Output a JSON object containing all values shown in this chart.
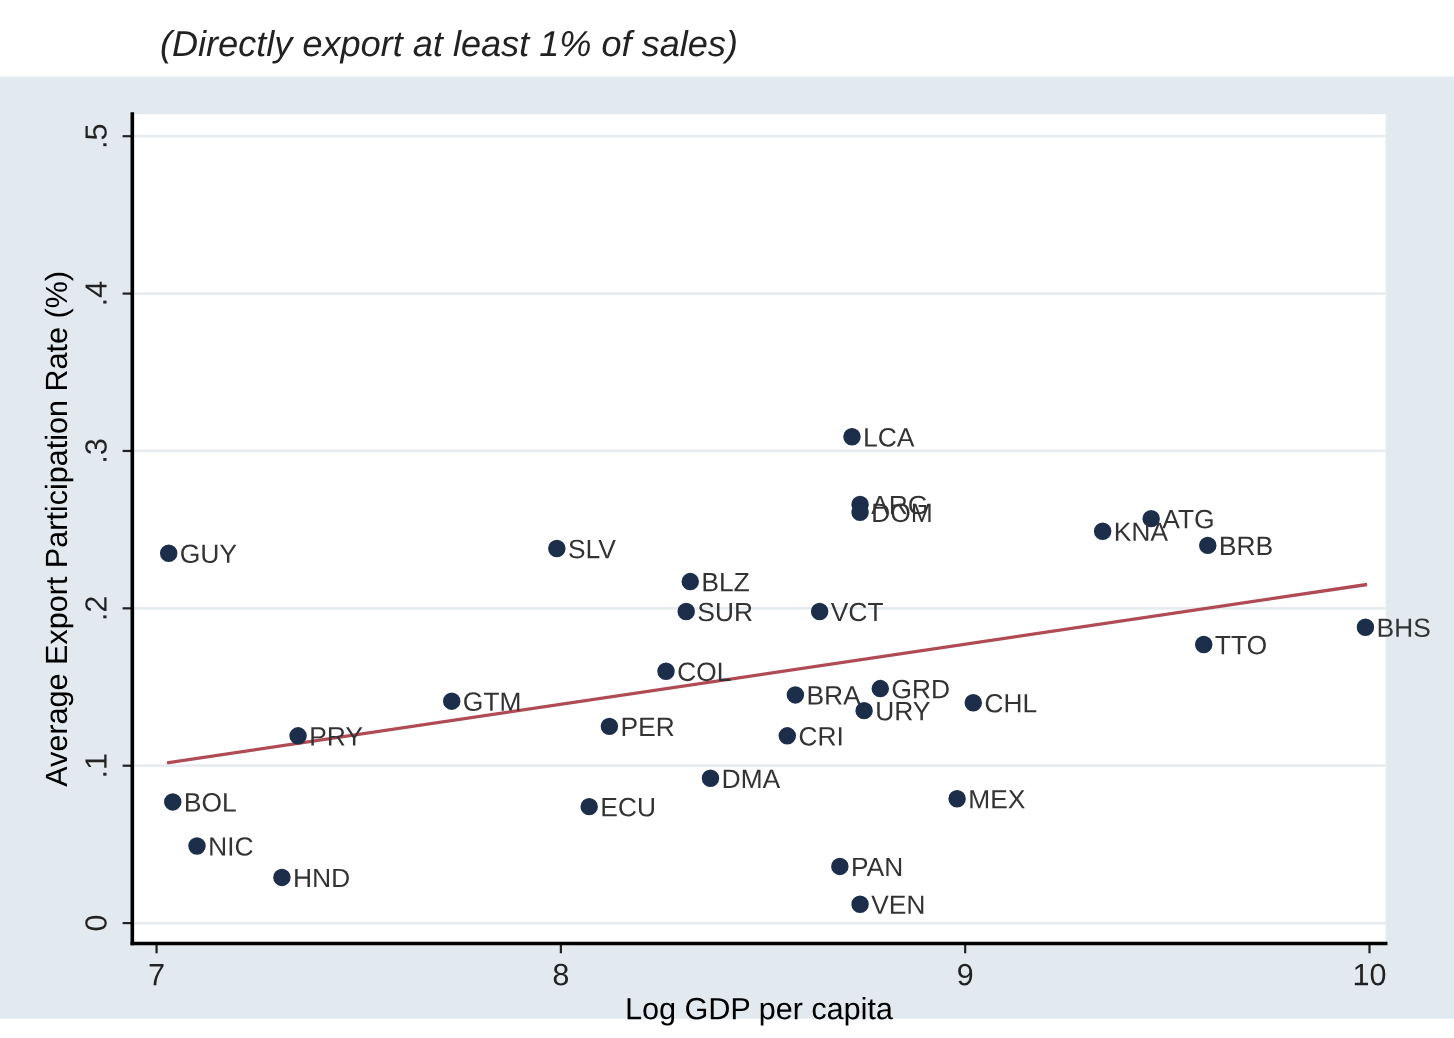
{
  "chart_data": {
    "type": "scatter",
    "title": "(Directly export at least 1% of sales)",
    "xlabel": "Log GDP per capita",
    "ylabel": "Average Export Participation Rate (%)",
    "xlim": [
      6.94,
      10.04
    ],
    "xticks": [
      7,
      8,
      9,
      10
    ],
    "ylim": [
      -0.013,
      0.514
    ],
    "yticks": [
      {
        "value": 0,
        "label": "0"
      },
      {
        "value": 0.1,
        "label": ".1"
      },
      {
        "value": 0.2,
        "label": ".2"
      },
      {
        "value": 0.3,
        "label": ".3"
      },
      {
        "value": 0.4,
        "label": ".4"
      },
      {
        "value": 0.5,
        "label": ".5"
      }
    ],
    "grid": "y",
    "legend": false,
    "series": [
      {
        "marker": "circle",
        "color": "#1c2e4a",
        "x": [
          7.03,
          7.99,
          8.32,
          8.31,
          8.72,
          8.74,
          8.74,
          9.46,
          9.34,
          9.6,
          8.64,
          8.26,
          7.73,
          7.35,
          8.12,
          8.58,
          8.79,
          8.75,
          8.56,
          9.02,
          9.59,
          9.99,
          8.37,
          8.07,
          8.98,
          7.04,
          7.1,
          7.31,
          8.69,
          8.74
        ],
        "values": [
          0.235,
          0.238,
          0.217,
          0.198,
          0.309,
          0.266,
          0.261,
          0.257,
          0.249,
          0.24,
          0.198,
          0.16,
          0.141,
          0.119,
          0.125,
          0.145,
          0.149,
          0.135,
          0.119,
          0.14,
          0.177,
          0.188,
          0.092,
          0.074,
          0.079,
          0.077,
          0.049,
          0.029,
          0.036,
          0.012
        ]
      },
      {
        "type": "line",
        "color": "#b04a55",
        "x": [
          7.03,
          9.99
        ],
        "values": [
          0.102,
          0.215
        ]
      }
    ],
    "annotations": [
      {
        "text": "GUY",
        "x": 7.03,
        "y": 0.235
      },
      {
        "text": "SLV",
        "x": 7.99,
        "y": 0.238
      },
      {
        "text": "BLZ",
        "x": 8.32,
        "y": 0.217
      },
      {
        "text": "SUR",
        "x": 8.31,
        "y": 0.198
      },
      {
        "text": "LCA",
        "x": 8.72,
        "y": 0.309
      },
      {
        "text": "ARG",
        "x": 8.74,
        "y": 0.266
      },
      {
        "text": "DOM",
        "x": 8.74,
        "y": 0.261
      },
      {
        "text": "ATG",
        "x": 9.46,
        "y": 0.257
      },
      {
        "text": "KNA",
        "x": 9.34,
        "y": 0.249
      },
      {
        "text": "BRB",
        "x": 9.6,
        "y": 0.24
      },
      {
        "text": "VCT",
        "x": 8.64,
        "y": 0.198
      },
      {
        "text": "COL",
        "x": 8.26,
        "y": 0.16
      },
      {
        "text": "GTM",
        "x": 7.73,
        "y": 0.141
      },
      {
        "text": "PRY",
        "x": 7.35,
        "y": 0.119
      },
      {
        "text": "PER",
        "x": 8.12,
        "y": 0.125
      },
      {
        "text": "BRA",
        "x": 8.58,
        "y": 0.145
      },
      {
        "text": "GRD",
        "x": 8.79,
        "y": 0.149
      },
      {
        "text": "URY",
        "x": 8.75,
        "y": 0.135
      },
      {
        "text": "CRI",
        "x": 8.56,
        "y": 0.119
      },
      {
        "text": "CHL",
        "x": 9.02,
        "y": 0.14
      },
      {
        "text": "TTO",
        "x": 9.59,
        "y": 0.177
      },
      {
        "text": "BHS",
        "x": 9.99,
        "y": 0.188
      },
      {
        "text": "DMA",
        "x": 8.37,
        "y": 0.092
      },
      {
        "text": "ECU",
        "x": 8.07,
        "y": 0.074
      },
      {
        "text": "MEX",
        "x": 8.98,
        "y": 0.079
      },
      {
        "text": "BOL",
        "x": 7.04,
        "y": 0.077
      },
      {
        "text": "NIC",
        "x": 7.1,
        "y": 0.049
      },
      {
        "text": "HND",
        "x": 7.31,
        "y": 0.029
      },
      {
        "text": "PAN",
        "x": 8.69,
        "y": 0.036
      },
      {
        "text": "VEN",
        "x": 8.74,
        "y": 0.012
      }
    ]
  }
}
